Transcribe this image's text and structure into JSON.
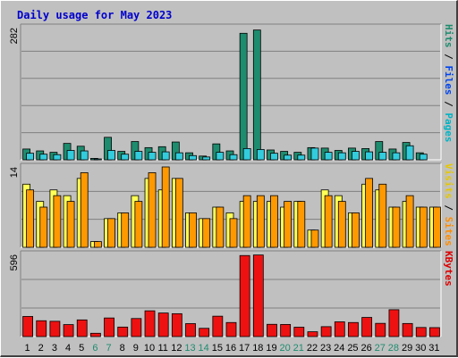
{
  "title": "Daily usage for May 2023",
  "colors": {
    "title": "#0000cc",
    "background": "#c0c0c0",
    "grid": "#808080",
    "pages": "#00b3c4",
    "files": "#0044ee",
    "hits": "#1e8c6e",
    "sites": "#ff8c00",
    "visits": "#e6c800",
    "kbytes": "#dd0000",
    "weekday": "#000000",
    "weekend": "#1e8c6e",
    "pages_bar": "#33ccdd",
    "hits_bar": "#1e8c6e",
    "visits_bar": "#ffff55",
    "sites_bar": "#ff9900",
    "kbytes_bar": "#ee1111"
  },
  "chart_data": [
    {
      "type": "bar",
      "panel": "hits-pages",
      "ylabel_parts": [
        "Pages",
        "Files",
        "Hits"
      ],
      "ymax_label": "282",
      "ylim": [
        0,
        282
      ],
      "categories": [
        "1",
        "2",
        "3",
        "4",
        "5",
        "6",
        "7",
        "8",
        "9",
        "10",
        "11",
        "12",
        "13",
        "14",
        "15",
        "16",
        "17",
        "18",
        "19",
        "20",
        "21",
        "22",
        "23",
        "24",
        "25",
        "26",
        "27",
        "28",
        "29",
        "30",
        "31"
      ],
      "weekend_days": [
        "6",
        "7",
        "13",
        "14",
        "20",
        "21",
        "27",
        "28"
      ],
      "series": [
        {
          "name": "Hits",
          "values": [
            23,
            19,
            16,
            35,
            29,
            3,
            48,
            18,
            39,
            26,
            28,
            38,
            15,
            8,
            34,
            19,
            270,
            277,
            21,
            18,
            16,
            26,
            25,
            20,
            25,
            24,
            39,
            23,
            37,
            15,
            0
          ]
        },
        {
          "name": "Pages",
          "values": [
            14,
            12,
            11,
            20,
            19,
            1,
            20,
            12,
            18,
            16,
            17,
            15,
            9,
            6,
            16,
            11,
            24,
            22,
            14,
            10,
            10,
            25,
            16,
            15,
            18,
            17,
            16,
            15,
            30,
            12,
            0
          ]
        }
      ]
    },
    {
      "type": "bar",
      "panel": "sites-visits",
      "ylabel_parts": [
        "Sites",
        "Visits"
      ],
      "ymax_label": "14",
      "ylim": [
        0,
        14
      ],
      "categories": [
        "1",
        "2",
        "3",
        "4",
        "5",
        "6",
        "7",
        "8",
        "9",
        "10",
        "11",
        "12",
        "13",
        "14",
        "15",
        "16",
        "17",
        "18",
        "19",
        "20",
        "21",
        "22",
        "23",
        "24",
        "25",
        "26",
        "27",
        "28",
        "29",
        "30",
        "31"
      ],
      "series": [
        {
          "name": "Visits",
          "values": [
            11,
            8,
            10,
            9,
            12,
            1,
            5,
            6,
            9,
            12,
            10,
            12,
            6,
            5,
            7,
            6,
            8,
            8,
            8,
            7,
            8,
            3,
            10,
            9,
            6,
            11,
            10,
            7,
            8,
            7,
            7
          ]
        },
        {
          "name": "Sites",
          "values": [
            10,
            7,
            9,
            8,
            13,
            1,
            5,
            6,
            8,
            13,
            14,
            12,
            6,
            5,
            7,
            5,
            9,
            9,
            9,
            8,
            8,
            3,
            9,
            8,
            6,
            12,
            11,
            7,
            9,
            7,
            7
          ]
        }
      ]
    },
    {
      "type": "bar",
      "panel": "kbytes",
      "ylabel_parts": [
        "KBytes"
      ],
      "ymax_label": "596",
      "ylim": [
        0,
        596
      ],
      "categories": [
        "1",
        "2",
        "3",
        "4",
        "5",
        "6",
        "7",
        "8",
        "9",
        "10",
        "11",
        "12",
        "13",
        "14",
        "15",
        "16",
        "17",
        "18",
        "19",
        "20",
        "21",
        "22",
        "23",
        "24",
        "25",
        "26",
        "27",
        "28",
        "29",
        "30",
        "31"
      ],
      "series": [
        {
          "name": "KBytes",
          "values": [
            146,
            115,
            111,
            87,
            121,
            24,
            135,
            69,
            131,
            187,
            171,
            166,
            94,
            60,
            148,
            102,
            588,
            592,
            89,
            88,
            68,
            35,
            72,
            107,
            102,
            139,
            96,
            195,
            95,
            66,
            65
          ]
        }
      ]
    }
  ]
}
